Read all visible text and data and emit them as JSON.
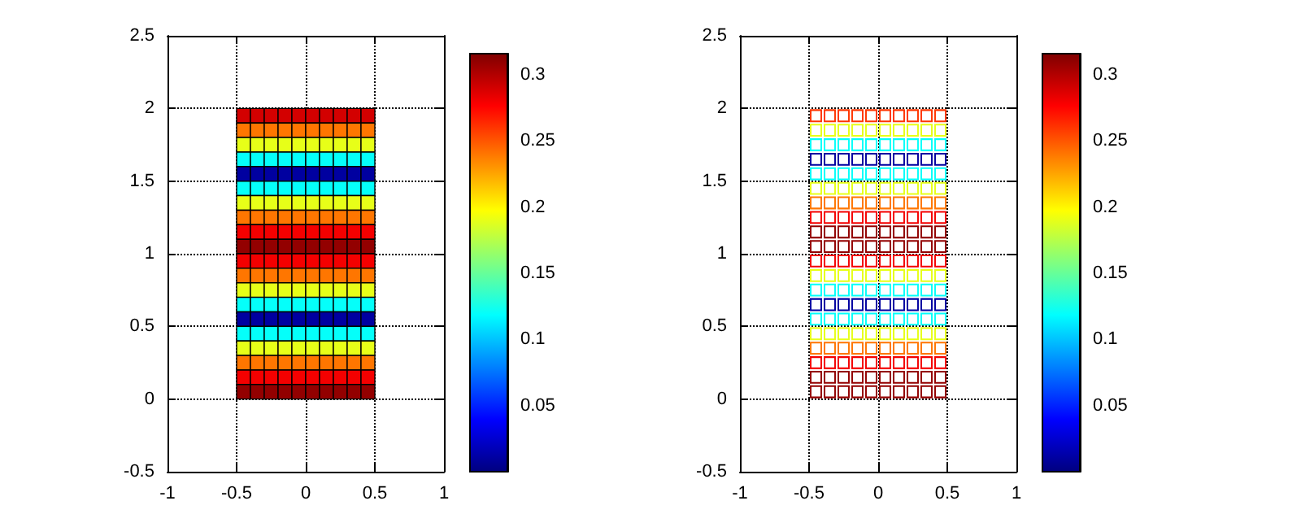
{
  "chart_data": [
    {
      "type": "scatter",
      "marker": "square",
      "grid": true,
      "xlim": [
        -1,
        1
      ],
      "xticks": [
        -1,
        -0.5,
        0,
        0.5,
        1
      ],
      "ylim": [
        -0.5,
        2.5
      ],
      "yticks": [
        -0.5,
        0,
        0.5,
        1,
        1.5,
        2,
        2.5
      ],
      "clim": [
        0,
        0.316
      ],
      "cticks": [
        0.05,
        0.1,
        0.15,
        0.2,
        0.25,
        0.3
      ],
      "series": [
        {
          "x": [
            -0.45,
            -0.35,
            -0.25,
            -0.15,
            -0.05,
            0.05,
            0.15,
            0.25,
            0.35,
            0.45
          ],
          "values": [
            1.95,
            1.95,
            1.95,
            1.95,
            1.95,
            1.95,
            1.95,
            1.95,
            1.95,
            1.95
          ],
          "cvalues": [
            0.29,
            0.29,
            0.29,
            0.29,
            0.29,
            0.29,
            0.29,
            0.29,
            0.29,
            0.29
          ]
        },
        {
          "x": [
            -0.45,
            -0.35,
            -0.25,
            -0.15,
            -0.05,
            0.05,
            0.15,
            0.25,
            0.35,
            0.45
          ],
          "values": [
            1.85,
            1.85,
            1.85,
            1.85,
            1.85,
            1.85,
            1.85,
            1.85,
            1.85,
            1.85
          ],
          "cvalues": [
            0.24,
            0.24,
            0.24,
            0.24,
            0.24,
            0.24,
            0.24,
            0.24,
            0.24,
            0.24
          ]
        },
        {
          "x": [
            -0.45,
            -0.35,
            -0.25,
            -0.15,
            -0.05,
            0.05,
            0.15,
            0.25,
            0.35,
            0.45
          ],
          "values": [
            1.75,
            1.75,
            1.75,
            1.75,
            1.75,
            1.75,
            1.75,
            1.75,
            1.75,
            1.75
          ],
          "cvalues": [
            0.19,
            0.19,
            0.19,
            0.19,
            0.19,
            0.19,
            0.19,
            0.19,
            0.19,
            0.19
          ]
        },
        {
          "x": [
            -0.45,
            -0.35,
            -0.25,
            -0.15,
            -0.05,
            0.05,
            0.15,
            0.25,
            0.35,
            0.45
          ],
          "values": [
            1.65,
            1.65,
            1.65,
            1.65,
            1.65,
            1.65,
            1.65,
            1.65,
            1.65,
            1.65
          ],
          "cvalues": [
            0.12,
            0.12,
            0.12,
            0.12,
            0.12,
            0.12,
            0.12,
            0.12,
            0.12,
            0.12
          ]
        },
        {
          "x": [
            -0.45,
            -0.35,
            -0.25,
            -0.15,
            -0.05,
            0.05,
            0.15,
            0.25,
            0.35,
            0.45
          ],
          "values": [
            1.55,
            1.55,
            1.55,
            1.55,
            1.55,
            1.55,
            1.55,
            1.55,
            1.55,
            1.55
          ],
          "cvalues": [
            0.01,
            0.01,
            0.01,
            0.01,
            0.01,
            0.01,
            0.01,
            0.01,
            0.01,
            0.01
          ]
        },
        {
          "x": [
            -0.45,
            -0.35,
            -0.25,
            -0.15,
            -0.05,
            0.05,
            0.15,
            0.25,
            0.35,
            0.45
          ],
          "values": [
            1.45,
            1.45,
            1.45,
            1.45,
            1.45,
            1.45,
            1.45,
            1.45,
            1.45,
            1.45
          ],
          "cvalues": [
            0.12,
            0.12,
            0.12,
            0.12,
            0.12,
            0.12,
            0.12,
            0.12,
            0.12,
            0.12
          ]
        },
        {
          "x": [
            -0.45,
            -0.35,
            -0.25,
            -0.15,
            -0.05,
            0.05,
            0.15,
            0.25,
            0.35,
            0.45
          ],
          "values": [
            1.35,
            1.35,
            1.35,
            1.35,
            1.35,
            1.35,
            1.35,
            1.35,
            1.35,
            1.35
          ],
          "cvalues": [
            0.19,
            0.19,
            0.19,
            0.19,
            0.19,
            0.19,
            0.19,
            0.19,
            0.19,
            0.19
          ]
        },
        {
          "x": [
            -0.45,
            -0.35,
            -0.25,
            -0.15,
            -0.05,
            0.05,
            0.15,
            0.25,
            0.35,
            0.45
          ],
          "values": [
            1.25,
            1.25,
            1.25,
            1.25,
            1.25,
            1.25,
            1.25,
            1.25,
            1.25,
            1.25
          ],
          "cvalues": [
            0.24,
            0.24,
            0.24,
            0.24,
            0.24,
            0.24,
            0.24,
            0.24,
            0.24,
            0.24
          ]
        },
        {
          "x": [
            -0.45,
            -0.35,
            -0.25,
            -0.15,
            -0.05,
            0.05,
            0.15,
            0.25,
            0.35,
            0.45
          ],
          "values": [
            1.15,
            1.15,
            1.15,
            1.15,
            1.15,
            1.15,
            1.15,
            1.15,
            1.15,
            1.15
          ],
          "cvalues": [
            0.28,
            0.28,
            0.28,
            0.28,
            0.28,
            0.28,
            0.28,
            0.28,
            0.28,
            0.28
          ]
        },
        {
          "x": [
            -0.45,
            -0.35,
            -0.25,
            -0.15,
            -0.05,
            0.05,
            0.15,
            0.25,
            0.35,
            0.45
          ],
          "values": [
            1.05,
            1.05,
            1.05,
            1.05,
            1.05,
            1.05,
            1.05,
            1.05,
            1.05,
            1.05
          ],
          "cvalues": [
            0.31,
            0.31,
            0.31,
            0.31,
            0.31,
            0.31,
            0.31,
            0.31,
            0.31,
            0.31
          ]
        },
        {
          "x": [
            -0.45,
            -0.35,
            -0.25,
            -0.15,
            -0.05,
            0.05,
            0.15,
            0.25,
            0.35,
            0.45
          ],
          "values": [
            0.95,
            0.95,
            0.95,
            0.95,
            0.95,
            0.95,
            0.95,
            0.95,
            0.95,
            0.95
          ],
          "cvalues": [
            0.28,
            0.28,
            0.28,
            0.28,
            0.28,
            0.28,
            0.28,
            0.28,
            0.28,
            0.28
          ]
        },
        {
          "x": [
            -0.45,
            -0.35,
            -0.25,
            -0.15,
            -0.05,
            0.05,
            0.15,
            0.25,
            0.35,
            0.45
          ],
          "values": [
            0.85,
            0.85,
            0.85,
            0.85,
            0.85,
            0.85,
            0.85,
            0.85,
            0.85,
            0.85
          ],
          "cvalues": [
            0.24,
            0.24,
            0.24,
            0.24,
            0.24,
            0.24,
            0.24,
            0.24,
            0.24,
            0.24
          ]
        },
        {
          "x": [
            -0.45,
            -0.35,
            -0.25,
            -0.15,
            -0.05,
            0.05,
            0.15,
            0.25,
            0.35,
            0.45
          ],
          "values": [
            0.75,
            0.75,
            0.75,
            0.75,
            0.75,
            0.75,
            0.75,
            0.75,
            0.75,
            0.75
          ],
          "cvalues": [
            0.19,
            0.19,
            0.19,
            0.19,
            0.19,
            0.19,
            0.19,
            0.19,
            0.19,
            0.19
          ]
        },
        {
          "x": [
            -0.45,
            -0.35,
            -0.25,
            -0.15,
            -0.05,
            0.05,
            0.15,
            0.25,
            0.35,
            0.45
          ],
          "values": [
            0.65,
            0.65,
            0.65,
            0.65,
            0.65,
            0.65,
            0.65,
            0.65,
            0.65,
            0.65
          ],
          "cvalues": [
            0.12,
            0.12,
            0.12,
            0.12,
            0.12,
            0.12,
            0.12,
            0.12,
            0.12,
            0.12
          ]
        },
        {
          "x": [
            -0.45,
            -0.35,
            -0.25,
            -0.15,
            -0.05,
            0.05,
            0.15,
            0.25,
            0.35,
            0.45
          ],
          "values": [
            0.55,
            0.55,
            0.55,
            0.55,
            0.55,
            0.55,
            0.55,
            0.55,
            0.55,
            0.55
          ],
          "cvalues": [
            0.01,
            0.01,
            0.01,
            0.01,
            0.01,
            0.01,
            0.01,
            0.01,
            0.01,
            0.01
          ]
        },
        {
          "x": [
            -0.45,
            -0.35,
            -0.25,
            -0.15,
            -0.05,
            0.05,
            0.15,
            0.25,
            0.35,
            0.45
          ],
          "values": [
            0.45,
            0.45,
            0.45,
            0.45,
            0.45,
            0.45,
            0.45,
            0.45,
            0.45,
            0.45
          ],
          "cvalues": [
            0.12,
            0.12,
            0.12,
            0.12,
            0.12,
            0.12,
            0.12,
            0.12,
            0.12,
            0.12
          ]
        },
        {
          "x": [
            -0.45,
            -0.35,
            -0.25,
            -0.15,
            -0.05,
            0.05,
            0.15,
            0.25,
            0.35,
            0.45
          ],
          "values": [
            0.35,
            0.35,
            0.35,
            0.35,
            0.35,
            0.35,
            0.35,
            0.35,
            0.35,
            0.35
          ],
          "cvalues": [
            0.19,
            0.19,
            0.19,
            0.19,
            0.19,
            0.19,
            0.19,
            0.19,
            0.19,
            0.19
          ]
        },
        {
          "x": [
            -0.45,
            -0.35,
            -0.25,
            -0.15,
            -0.05,
            0.05,
            0.15,
            0.25,
            0.35,
            0.45
          ],
          "values": [
            0.25,
            0.25,
            0.25,
            0.25,
            0.25,
            0.25,
            0.25,
            0.25,
            0.25,
            0.25
          ],
          "cvalues": [
            0.24,
            0.24,
            0.24,
            0.24,
            0.24,
            0.24,
            0.24,
            0.24,
            0.24,
            0.24
          ]
        },
        {
          "x": [
            -0.45,
            -0.35,
            -0.25,
            -0.15,
            -0.05,
            0.05,
            0.15,
            0.25,
            0.35,
            0.45
          ],
          "values": [
            0.15,
            0.15,
            0.15,
            0.15,
            0.15,
            0.15,
            0.15,
            0.15,
            0.15,
            0.15
          ],
          "cvalues": [
            0.28,
            0.28,
            0.28,
            0.28,
            0.28,
            0.28,
            0.28,
            0.28,
            0.28,
            0.28
          ]
        },
        {
          "x": [
            -0.45,
            -0.35,
            -0.25,
            -0.15,
            -0.05,
            0.05,
            0.15,
            0.25,
            0.35,
            0.45
          ],
          "values": [
            0.05,
            0.05,
            0.05,
            0.05,
            0.05,
            0.05,
            0.05,
            0.05,
            0.05,
            0.05
          ],
          "cvalues": [
            0.31,
            0.31,
            0.31,
            0.31,
            0.31,
            0.31,
            0.31,
            0.31,
            0.31,
            0.31
          ]
        }
      ]
    },
    {
      "type": "scatter",
      "marker": "square",
      "line_style": "solid",
      "grid": true,
      "xlim": [
        -1,
        1
      ],
      "xticks": [
        -1,
        -0.5,
        0,
        0.5,
        1
      ],
      "ylim": [
        -0.5,
        2.5
      ],
      "yticks": [
        -0.5,
        0,
        0.5,
        1,
        1.5,
        2,
        2.5
      ],
      "clim": [
        0,
        0.316
      ],
      "cticks": [
        0.05,
        0.1,
        0.15,
        0.2,
        0.25,
        0.3
      ],
      "series": [
        {
          "x": [
            -0.45,
            -0.35,
            -0.25,
            -0.15,
            -0.05,
            0.05,
            0.15,
            0.25,
            0.35,
            0.45
          ],
          "values": [
            1.95,
            1.95,
            1.95,
            1.95,
            1.95,
            1.95,
            1.95,
            1.95,
            1.95,
            1.95
          ],
          "cvalues": [
            0.26,
            0.26,
            0.26,
            0.26,
            0.26,
            0.26,
            0.26,
            0.26,
            0.26,
            0.26
          ]
        },
        {
          "x": [
            -0.45,
            -0.35,
            -0.25,
            -0.15,
            -0.05,
            0.05,
            0.15,
            0.25,
            0.35,
            0.45
          ],
          "values": [
            1.85,
            1.85,
            1.85,
            1.85,
            1.85,
            1.85,
            1.85,
            1.85,
            1.85,
            1.85
          ],
          "cvalues": [
            0.19,
            0.19,
            0.19,
            0.19,
            0.19,
            0.19,
            0.19,
            0.19,
            0.19,
            0.19
          ]
        },
        {
          "x": [
            -0.45,
            -0.35,
            -0.25,
            -0.15,
            -0.05,
            0.05,
            0.15,
            0.25,
            0.35,
            0.45
          ],
          "values": [
            1.75,
            1.75,
            1.75,
            1.75,
            1.75,
            1.75,
            1.75,
            1.75,
            1.75,
            1.75
          ],
          "cvalues": [
            0.12,
            0.12,
            0.12,
            0.12,
            0.12,
            0.12,
            0.12,
            0.12,
            0.12,
            0.12
          ]
        },
        {
          "x": [
            -0.45,
            -0.35,
            -0.25,
            -0.15,
            -0.05,
            0.05,
            0.15,
            0.25,
            0.35,
            0.45
          ],
          "values": [
            1.65,
            1.65,
            1.65,
            1.65,
            1.65,
            1.65,
            1.65,
            1.65,
            1.65,
            1.65
          ],
          "cvalues": [
            0.01,
            0.01,
            0.01,
            0.01,
            0.01,
            0.01,
            0.01,
            0.01,
            0.01,
            0.01
          ]
        },
        {
          "x": [
            -0.45,
            -0.35,
            -0.25,
            -0.15,
            -0.05,
            0.05,
            0.15,
            0.25,
            0.35,
            0.45
          ],
          "values": [
            1.55,
            1.55,
            1.55,
            1.55,
            1.55,
            1.55,
            1.55,
            1.55,
            1.55,
            1.55
          ],
          "cvalues": [
            0.12,
            0.12,
            0.12,
            0.12,
            0.12,
            0.12,
            0.12,
            0.12,
            0.12,
            0.12
          ]
        },
        {
          "x": [
            -0.45,
            -0.35,
            -0.25,
            -0.15,
            -0.05,
            0.05,
            0.15,
            0.25,
            0.35,
            0.45
          ],
          "values": [
            1.45,
            1.45,
            1.45,
            1.45,
            1.45,
            1.45,
            1.45,
            1.45,
            1.45,
            1.45
          ],
          "cvalues": [
            0.19,
            0.19,
            0.19,
            0.19,
            0.19,
            0.19,
            0.19,
            0.19,
            0.19,
            0.19
          ]
        },
        {
          "x": [
            -0.45,
            -0.35,
            -0.25,
            -0.15,
            -0.05,
            0.05,
            0.15,
            0.25,
            0.35,
            0.45
          ],
          "values": [
            1.35,
            1.35,
            1.35,
            1.35,
            1.35,
            1.35,
            1.35,
            1.35,
            1.35,
            1.35
          ],
          "cvalues": [
            0.24,
            0.24,
            0.24,
            0.24,
            0.24,
            0.24,
            0.24,
            0.24,
            0.24,
            0.24
          ]
        },
        {
          "x": [
            -0.45,
            -0.35,
            -0.25,
            -0.15,
            -0.05,
            0.05,
            0.15,
            0.25,
            0.35,
            0.45
          ],
          "values": [
            1.25,
            1.25,
            1.25,
            1.25,
            1.25,
            1.25,
            1.25,
            1.25,
            1.25,
            1.25
          ],
          "cvalues": [
            0.28,
            0.28,
            0.28,
            0.28,
            0.28,
            0.28,
            0.28,
            0.28,
            0.28,
            0.28
          ]
        },
        {
          "x": [
            -0.45,
            -0.35,
            -0.25,
            -0.15,
            -0.05,
            0.05,
            0.15,
            0.25,
            0.35,
            0.45
          ],
          "values": [
            1.15,
            1.15,
            1.15,
            1.15,
            1.15,
            1.15,
            1.15,
            1.15,
            1.15,
            1.15
          ],
          "cvalues": [
            0.31,
            0.31,
            0.31,
            0.31,
            0.31,
            0.31,
            0.31,
            0.31,
            0.31,
            0.31
          ]
        },
        {
          "x": [
            -0.45,
            -0.35,
            -0.25,
            -0.15,
            -0.05,
            0.05,
            0.15,
            0.25,
            0.35,
            0.45
          ],
          "values": [
            1.05,
            1.05,
            1.05,
            1.05,
            1.05,
            1.05,
            1.05,
            1.05,
            1.05,
            1.05
          ],
          "cvalues": [
            0.31,
            0.31,
            0.31,
            0.31,
            0.31,
            0.31,
            0.31,
            0.31,
            0.31,
            0.31
          ]
        },
        {
          "x": [
            -0.45,
            -0.35,
            -0.25,
            -0.15,
            -0.05,
            0.05,
            0.15,
            0.25,
            0.35,
            0.45
          ],
          "values": [
            0.95,
            0.95,
            0.95,
            0.95,
            0.95,
            0.95,
            0.95,
            0.95,
            0.95,
            0.95
          ],
          "cvalues": [
            0.28,
            0.28,
            0.28,
            0.28,
            0.28,
            0.28,
            0.28,
            0.28,
            0.28,
            0.28
          ]
        },
        {
          "x": [
            -0.45,
            -0.35,
            -0.25,
            -0.15,
            -0.05,
            0.05,
            0.15,
            0.25,
            0.35,
            0.45
          ],
          "values": [
            0.85,
            0.85,
            0.85,
            0.85,
            0.85,
            0.85,
            0.85,
            0.85,
            0.85,
            0.85
          ],
          "cvalues": [
            0.19,
            0.19,
            0.19,
            0.19,
            0.19,
            0.19,
            0.19,
            0.19,
            0.19,
            0.19
          ]
        },
        {
          "x": [
            -0.45,
            -0.35,
            -0.25,
            -0.15,
            -0.05,
            0.05,
            0.15,
            0.25,
            0.35,
            0.45
          ],
          "values": [
            0.75,
            0.75,
            0.75,
            0.75,
            0.75,
            0.75,
            0.75,
            0.75,
            0.75,
            0.75
          ],
          "cvalues": [
            0.12,
            0.12,
            0.12,
            0.12,
            0.12,
            0.12,
            0.12,
            0.12,
            0.12,
            0.12
          ]
        },
        {
          "x": [
            -0.45,
            -0.35,
            -0.25,
            -0.15,
            -0.05,
            0.05,
            0.15,
            0.25,
            0.35,
            0.45
          ],
          "values": [
            0.65,
            0.65,
            0.65,
            0.65,
            0.65,
            0.65,
            0.65,
            0.65,
            0.65,
            0.65
          ],
          "cvalues": [
            0.01,
            0.01,
            0.01,
            0.01,
            0.01,
            0.01,
            0.01,
            0.01,
            0.01,
            0.01
          ]
        },
        {
          "x": [
            -0.45,
            -0.35,
            -0.25,
            -0.15,
            -0.05,
            0.05,
            0.15,
            0.25,
            0.35,
            0.45
          ],
          "values": [
            0.55,
            0.55,
            0.55,
            0.55,
            0.55,
            0.55,
            0.55,
            0.55,
            0.55,
            0.55
          ],
          "cvalues": [
            0.12,
            0.12,
            0.12,
            0.12,
            0.12,
            0.12,
            0.12,
            0.12,
            0.12,
            0.12
          ]
        },
        {
          "x": [
            -0.45,
            -0.35,
            -0.25,
            -0.15,
            -0.05,
            0.05,
            0.15,
            0.25,
            0.35,
            0.45
          ],
          "values": [
            0.45,
            0.45,
            0.45,
            0.45,
            0.45,
            0.45,
            0.45,
            0.45,
            0.45,
            0.45
          ],
          "cvalues": [
            0.19,
            0.19,
            0.19,
            0.19,
            0.19,
            0.19,
            0.19,
            0.19,
            0.19,
            0.19
          ]
        },
        {
          "x": [
            -0.45,
            -0.35,
            -0.25,
            -0.15,
            -0.05,
            0.05,
            0.15,
            0.25,
            0.35,
            0.45
          ],
          "values": [
            0.35,
            0.35,
            0.35,
            0.35,
            0.35,
            0.35,
            0.35,
            0.35,
            0.35,
            0.35
          ],
          "cvalues": [
            0.24,
            0.24,
            0.24,
            0.24,
            0.24,
            0.24,
            0.24,
            0.24,
            0.24,
            0.24
          ]
        },
        {
          "x": [
            -0.45,
            -0.35,
            -0.25,
            -0.15,
            -0.05,
            0.05,
            0.15,
            0.25,
            0.35,
            0.45
          ],
          "values": [
            0.25,
            0.25,
            0.25,
            0.25,
            0.25,
            0.25,
            0.25,
            0.25,
            0.25,
            0.25
          ],
          "cvalues": [
            0.28,
            0.28,
            0.28,
            0.28,
            0.28,
            0.28,
            0.28,
            0.28,
            0.28,
            0.28
          ]
        },
        {
          "x": [
            -0.45,
            -0.35,
            -0.25,
            -0.15,
            -0.05,
            0.05,
            0.15,
            0.25,
            0.35,
            0.45
          ],
          "values": [
            0.15,
            0.15,
            0.15,
            0.15,
            0.15,
            0.15,
            0.15,
            0.15,
            0.15,
            0.15
          ],
          "cvalues": [
            0.31,
            0.31,
            0.31,
            0.31,
            0.31,
            0.31,
            0.31,
            0.31,
            0.31,
            0.31
          ]
        },
        {
          "x": [
            -0.45,
            -0.35,
            -0.25,
            -0.15,
            -0.05,
            0.05,
            0.15,
            0.25,
            0.35,
            0.45
          ],
          "values": [
            0.05,
            0.05,
            0.05,
            0.05,
            0.05,
            0.05,
            0.05,
            0.05,
            0.05,
            0.05
          ],
          "cvalues": [
            0.31,
            0.31,
            0.31,
            0.31,
            0.31,
            0.31,
            0.31,
            0.31,
            0.31,
            0.31
          ]
        }
      ]
    }
  ]
}
